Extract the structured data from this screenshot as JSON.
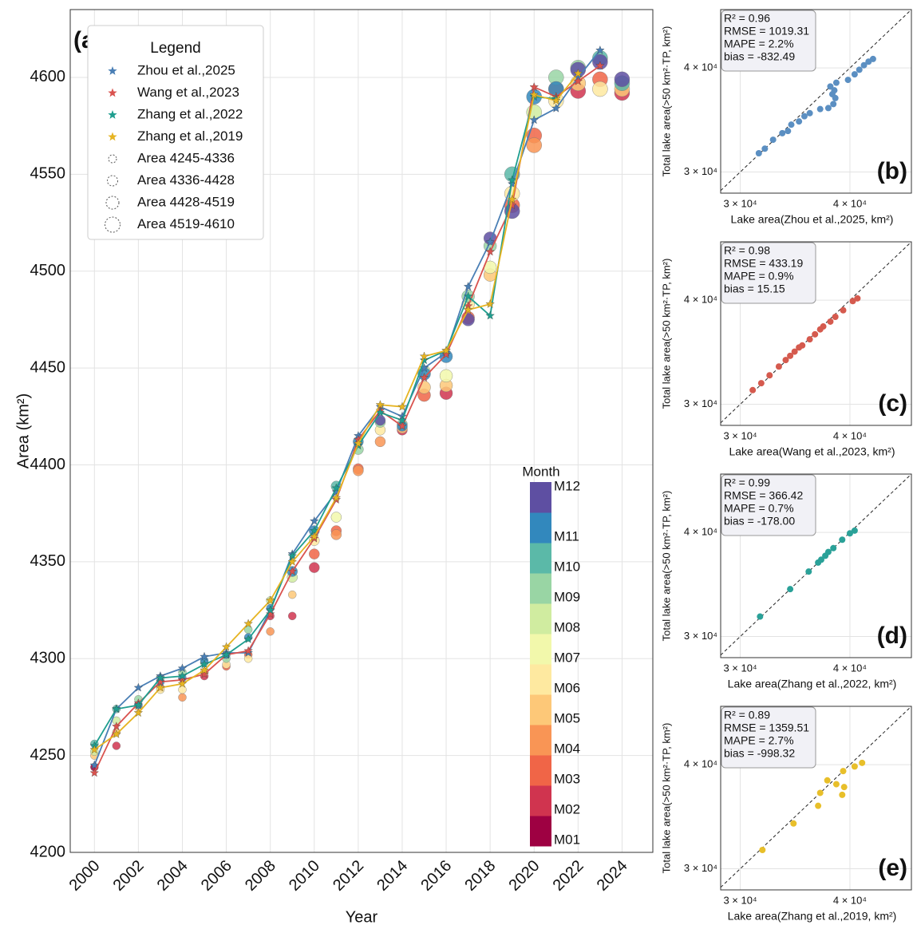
{
  "chart_data": [
    {
      "type": "line",
      "panel_label": "(a)",
      "x_label": "Year",
      "y_label": "Area (km²)",
      "legend_title": "Legend",
      "grid": true,
      "xlim": [
        1998.9,
        2025.4
      ],
      "ylim": [
        4200,
        4635
      ],
      "xticks": [
        2000,
        2002,
        2004,
        2006,
        2008,
        2010,
        2012,
        2014,
        2016,
        2018,
        2020,
        2022,
        2024
      ],
      "yticks": [
        4200,
        4250,
        4300,
        4350,
        4400,
        4450,
        4500,
        4550,
        4600
      ],
      "series": [
        {
          "name": "Zhou et al.,2025",
          "color": "#4a7fb5",
          "x": [
            2000,
            2001,
            2002,
            2003,
            2004,
            2005,
            2006,
            2007,
            2008,
            2009,
            2010,
            2011,
            2012,
            2013,
            2014,
            2015,
            2016,
            2017,
            2018,
            2019,
            2020,
            2021,
            2022,
            2023
          ],
          "values": [
            4245,
            4274,
            4285,
            4291,
            4295,
            4301,
            4303,
            4303,
            4325,
            4354,
            4371,
            4386,
            4415,
            4430,
            4425,
            4450,
            4458,
            4492,
            4515,
            4545,
            4578,
            4584,
            4600,
            4614
          ]
        },
        {
          "name": "Wang et al.,2023",
          "color": "#d9534f",
          "x": [
            2000,
            2001,
            2002,
            2003,
            2004,
            2005,
            2006,
            2007,
            2008,
            2009,
            2010,
            2011,
            2012,
            2013,
            2014,
            2015,
            2016,
            2017,
            2018,
            2019,
            2020,
            2021,
            2022,
            2023
          ],
          "values": [
            4241,
            4265,
            4277,
            4288,
            4289,
            4292,
            4302,
            4304,
            4323,
            4345,
            4362,
            4382,
            4413,
            4428,
            4420,
            4445,
            4457,
            4482,
            4510,
            4534,
            4595,
            4590,
            4598,
            4606
          ]
        },
        {
          "name": "Zhang et al.,2022",
          "color": "#1f9e8f",
          "x": [
            2000,
            2001,
            2002,
            2003,
            2004,
            2005,
            2006,
            2007,
            2008,
            2009,
            2010,
            2011,
            2012,
            2013,
            2014,
            2015,
            2016,
            2017,
            2018,
            2019,
            2020,
            2021
          ],
          "values": [
            4255,
            4274,
            4276,
            4290,
            4291,
            4297,
            4302,
            4310,
            4325,
            4353,
            4366,
            4388,
            4410,
            4427,
            4423,
            4454,
            4459,
            4487,
            4477,
            4547,
            4590,
            4589
          ]
        },
        {
          "name": "Zhang et al.,2019",
          "color": "#e6b422",
          "x": [
            2000,
            2001,
            2002,
            2003,
            2004,
            2005,
            2006,
            2007,
            2008,
            2009,
            2010,
            2011,
            2012,
            2013,
            2014,
            2015,
            2016,
            2017,
            2018,
            2019,
            2020,
            2021,
            2022
          ],
          "values": [
            4253,
            4261,
            4272,
            4285,
            4287,
            4294,
            4306,
            4318,
            4330,
            4350,
            4363,
            4383,
            4411,
            4431,
            4430,
            4456,
            4459,
            4480,
            4483,
            4537,
            4591,
            4588,
            4602
          ]
        }
      ],
      "size_legend": {
        "labels": [
          "Area 4245-4336",
          "Area 4336-4428",
          "Area 4428-4519",
          "Area 4519-4610"
        ],
        "bins": [
          4245,
          4336,
          4428,
          4519,
          4610
        ]
      },
      "colorbar": {
        "title": "Month",
        "labels": [
          "M01",
          "M02",
          "M03",
          "M04",
          "M05",
          "M06",
          "M07",
          "M08",
          "M09",
          "M10",
          "M11",
          "M12"
        ],
        "colors": [
          "#9e0142",
          "#d0344f",
          "#f06547",
          "#f99555",
          "#fdc878",
          "#fee9a0",
          "#f2f8ab",
          "#d0eca0",
          "#99d5a4",
          "#5bb9a8",
          "#3288bd",
          "#5e4fa2"
        ]
      },
      "points": {
        "x": [
          2000,
          2000,
          2000,
          2000,
          2001,
          2001,
          2001,
          2001,
          2002,
          2002,
          2002,
          2002,
          2003,
          2003,
          2003,
          2003,
          2004,
          2004,
          2004,
          2004,
          2005,
          2005,
          2005,
          2005,
          2006,
          2006,
          2006,
          2006,
          2007,
          2007,
          2007,
          2007,
          2008,
          2008,
          2008,
          2008,
          2009,
          2009,
          2009,
          2009,
          2010,
          2010,
          2010,
          2010,
          2011,
          2011,
          2011,
          2011,
          2012,
          2012,
          2012,
          2012,
          2013,
          2013,
          2013,
          2013,
          2014,
          2014,
          2014,
          2014,
          2015,
          2015,
          2015,
          2015,
          2016,
          2016,
          2016,
          2016,
          2017,
          2017,
          2017,
          2017,
          2018,
          2018,
          2018,
          2018,
          2019,
          2019,
          2019,
          2019,
          2020,
          2020,
          2020,
          2020,
          2021,
          2021,
          2021,
          2021,
          2022,
          2022,
          2022,
          2022,
          2023,
          2023,
          2023,
          2023,
          2024,
          2024,
          2024,
          2024
        ],
        "month": [
          1,
          5,
          8,
          10,
          2,
          5,
          8,
          10,
          3,
          5,
          9,
          11,
          4,
          6,
          9,
          11,
          4,
          6,
          9,
          11,
          2,
          5,
          9,
          11,
          3,
          6,
          9,
          11,
          3,
          6,
          9,
          11,
          2,
          4,
          8,
          11,
          2,
          5,
          8,
          11,
          2,
          3,
          6,
          11,
          3,
          4,
          7,
          10,
          3,
          4,
          9,
          11,
          4,
          6,
          9,
          12,
          2,
          5,
          9,
          11,
          3,
          5,
          8,
          11,
          2,
          5,
          7,
          11,
          3,
          6,
          9,
          12,
          5,
          7,
          9,
          12,
          3,
          6,
          10,
          12,
          3,
          4,
          8,
          11,
          3,
          6,
          9,
          11,
          2,
          5,
          9,
          12,
          3,
          6,
          10,
          12,
          2,
          5,
          10,
          12
        ],
        "values": [
          4244,
          4250,
          4252,
          4256,
          4255,
          4262,
          4268,
          4274,
          4276,
          4275,
          4279,
          4276,
          4285,
          4284,
          4290,
          4288,
          4280,
          4284,
          4293,
          4290,
          4291,
          4293,
          4298,
          4299,
          4296,
          4297,
          4300,
          4302,
          4302,
          4300,
          4315,
          4311,
          4322,
          4314,
          4330,
          4326,
          4322,
          4333,
          4342,
          4345,
          4347,
          4354,
          4361,
          4366,
          4366,
          4364,
          4373,
          4389,
          4398,
          4397,
          4408,
          4412,
          4412,
          4418,
          4422,
          4423,
          4418,
          4419,
          4421,
          4420,
          4436,
          4440,
          4448,
          4447,
          4437,
          4441,
          4446,
          4456,
          4476,
          4483,
          4487,
          4475,
          4498,
          4502,
          4513,
          4517,
          4534,
          4540,
          4550,
          4531,
          4570,
          4565,
          4582,
          4590,
          4594,
          4588,
          4600,
          4594,
          4593,
          4597,
          4605,
          4604,
          4599,
          4594,
          4610,
          4608,
          4592,
          4594,
          4597,
          4599
        ]
      }
    },
    {
      "type": "scatter",
      "panel_label": "(b)",
      "log_scale": true,
      "color": "#5b8fc2",
      "grid": true,
      "x_label": "Lake area(Zhou et al.,2025, km²)",
      "y_label": "Total lake area(>50 km²·TP, km²)",
      "stats": [
        "R² = 0.96",
        "RMSE = 1019.31",
        "MAPE = 2.2%",
        "bias = -832.49"
      ],
      "xlim": [
        28500,
        47000
      ],
      "ylim": [
        28300,
        47000
      ],
      "xticks": [
        {
          "value": 30000,
          "label": "3 × 10⁴"
        },
        {
          "value": 40000,
          "label": "4 × 10⁴"
        }
      ],
      "yticks": [
        {
          "value": 30000,
          "label": "3 × 10⁴"
        },
        {
          "value": 40000,
          "label": "4 × 10⁴"
        }
      ],
      "x": [
        31500,
        32000,
        32700,
        33500,
        34000,
        34300,
        35000,
        35500,
        36000,
        37000,
        37800,
        38300,
        38500,
        38200,
        38400,
        38000,
        38600,
        39800,
        40500,
        41000,
        41500,
        42000,
        42500
      ],
      "values": [
        31600,
        32000,
        32800,
        33400,
        33600,
        34200,
        34500,
        35000,
        35300,
        35700,
        35800,
        36200,
        36800,
        37200,
        37600,
        38000,
        38400,
        38700,
        39300,
        39800,
        40300,
        40700,
        41000
      ]
    },
    {
      "type": "scatter",
      "panel_label": "(c)",
      "log_scale": true,
      "color": "#d55a4e",
      "grid": true,
      "x_label": "Lake area(Wang et al.,2023, km²)",
      "y_label": "Total lake area(>50 km²·TP, km²)",
      "stats": [
        "R² = 0.98",
        "RMSE = 433.19",
        "MAPE = 0.9%",
        "bias = 15.15"
      ],
      "xlim": [
        28500,
        47000
      ],
      "ylim": [
        28300,
        47000
      ],
      "xticks": [
        {
          "value": 30000,
          "label": "3 × 10⁴"
        },
        {
          "value": 40000,
          "label": "4 × 10⁴"
        }
      ],
      "yticks": [
        {
          "value": 30000,
          "label": "3 × 10⁴"
        },
        {
          "value": 40000,
          "label": "4 × 10⁴"
        }
      ],
      "x": [
        31000,
        31700,
        32400,
        33200,
        33800,
        34200,
        34600,
        35000,
        35300,
        36000,
        36500,
        37000,
        37300,
        38000,
        38500,
        39300,
        40300,
        40800
      ],
      "values": [
        31200,
        31800,
        32500,
        33300,
        33900,
        34300,
        34700,
        35100,
        35300,
        35900,
        36400,
        36900,
        37200,
        37700,
        38200,
        38900,
        39900,
        40200
      ]
    },
    {
      "type": "scatter",
      "panel_label": "(d)",
      "log_scale": true,
      "color": "#2aa198",
      "grid": true,
      "x_label": "Lake area(Zhang et al.,2022, km²)",
      "y_label": "Total lake area(>50 km²·TP, km²)",
      "stats": [
        "R² = 0.99",
        "RMSE = 366.42",
        "MAPE = 0.7%",
        "bias = -178.00"
      ],
      "xlim": [
        28500,
        47000
      ],
      "ylim": [
        28300,
        47000
      ],
      "xticks": [
        {
          "value": 30000,
          "label": "3 × 10⁴"
        },
        {
          "value": 40000,
          "label": "4 × 10⁴"
        }
      ],
      "yticks": [
        {
          "value": 30000,
          "label": "3 × 10⁴"
        },
        {
          "value": 40000,
          "label": "4 × 10⁴"
        }
      ],
      "x": [
        31600,
        34200,
        35900,
        36800,
        37100,
        37500,
        37800,
        38300,
        39200,
        40000,
        40500
      ],
      "values": [
        31700,
        34200,
        35900,
        36800,
        37100,
        37500,
        37900,
        38300,
        39200,
        39900,
        40200
      ]
    },
    {
      "type": "scatter",
      "panel_label": "(e)",
      "log_scale": true,
      "color": "#e8bf2a",
      "grid": true,
      "x_label": "Lake area(Zhang et al.,2019, km²)",
      "y_label": "Total lake area(>50 km²·TP, km²)",
      "stats": [
        "R² = 0.89",
        "RMSE = 1359.51",
        "MAPE = 2.7%",
        "bias = -998.32"
      ],
      "xlim": [
        28500,
        47000
      ],
      "ylim": [
        28300,
        47000
      ],
      "xticks": [
        {
          "value": 30000,
          "label": "3 × 10⁴"
        },
        {
          "value": 40000,
          "label": "4 × 10⁴"
        }
      ],
      "yticks": [
        {
          "value": 30000,
          "label": "3 × 10⁴"
        },
        {
          "value": 40000,
          "label": "4 × 10⁴"
        }
      ],
      "x": [
        31800,
        34500,
        36800,
        37000,
        37700,
        38600,
        39300,
        39200,
        39400,
        40500,
        41300
      ],
      "values": [
        31600,
        34000,
        35700,
        37000,
        38300,
        37900,
        39300,
        36800,
        37600,
        39800,
        40200
      ]
    }
  ]
}
